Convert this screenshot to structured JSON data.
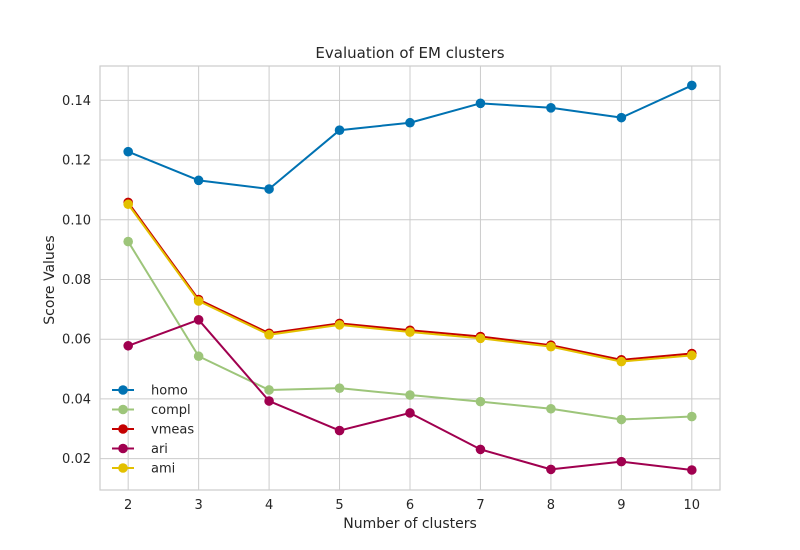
{
  "chart_data": {
    "type": "line",
    "title": "Evaluation of EM clusters",
    "xlabel": "Number of clusters",
    "ylabel": "Score Values",
    "x": [
      2,
      3,
      4,
      5,
      6,
      7,
      8,
      9,
      10
    ],
    "xlim": [
      1.6,
      10.4
    ],
    "ylim": [
      0.0095,
      0.1515
    ],
    "yticks": [
      0.02,
      0.04,
      0.06,
      0.08,
      0.1,
      0.12,
      0.14
    ],
    "ytick_labels": [
      "0.02",
      "0.04",
      "0.06",
      "0.08",
      "0.10",
      "0.12",
      "0.14"
    ],
    "xtick_labels": [
      "2",
      "3",
      "4",
      "5",
      "6",
      "7",
      "8",
      "9",
      "10"
    ],
    "grid": true,
    "legend_position": "lower-left",
    "series": [
      {
        "name": "homo",
        "color": "#0072b2",
        "values": [
          0.1228,
          0.1132,
          0.1103,
          0.13,
          0.1325,
          0.139,
          0.1375,
          0.1342,
          0.145
        ]
      },
      {
        "name": "compl",
        "color": "#9dc57a",
        "values": [
          0.0927,
          0.0543,
          0.043,
          0.0436,
          0.0413,
          0.0391,
          0.0367,
          0.0331,
          0.0341
        ]
      },
      {
        "name": "vmeas",
        "color": "#c40000",
        "values": [
          0.1058,
          0.0733,
          0.062,
          0.0653,
          0.063,
          0.0609,
          0.058,
          0.0531,
          0.0552
        ]
      },
      {
        "name": "ari",
        "color": "#a0004f",
        "values": [
          0.0578,
          0.0665,
          0.0393,
          0.0294,
          0.0353,
          0.0231,
          0.0164,
          0.019,
          0.0162
        ]
      },
      {
        "name": "ami",
        "color": "#e3c000",
        "values": [
          0.1052,
          0.0728,
          0.0615,
          0.0648,
          0.0624,
          0.0603,
          0.0575,
          0.0525,
          0.0546
        ]
      }
    ]
  }
}
